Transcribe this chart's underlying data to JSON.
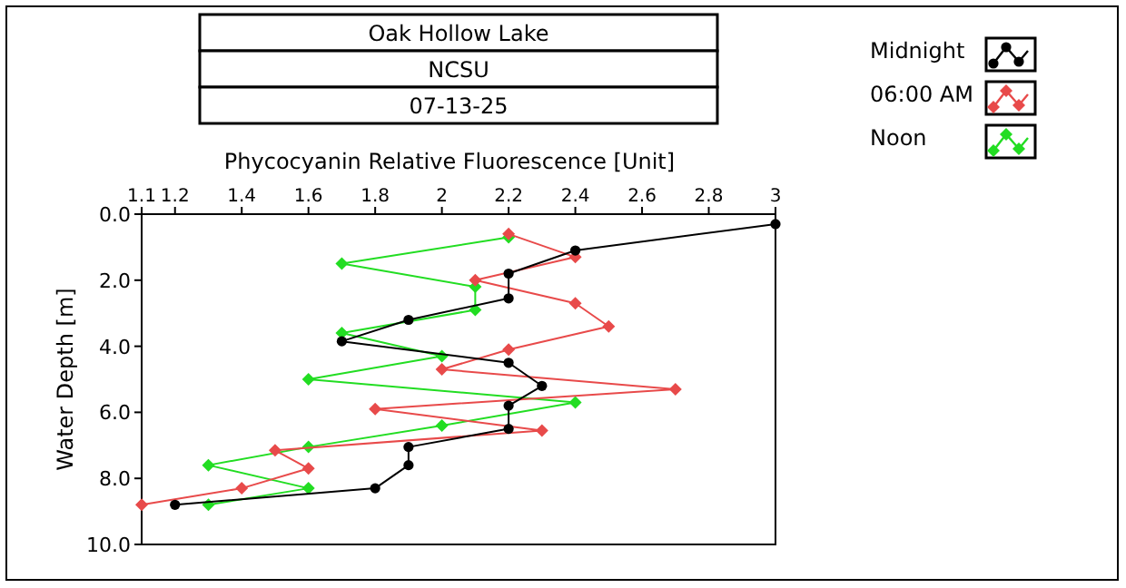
{
  "chart_data": {
    "type": "line",
    "title": "Oak Hollow Lake",
    "subtitle": "NCSU",
    "annotations": [
      "07-13-25"
    ],
    "xlabel": "Phycocyanin Relative Fluorescence [Unit]",
    "ylabel": "Water Depth [m]",
    "xlim": [
      1.1,
      3
    ],
    "xticks": [
      1.1,
      1.2,
      1.4,
      1.6,
      1.8,
      2,
      2.2,
      2.4,
      2.6,
      2.8,
      3
    ],
    "ylim": [
      10,
      0
    ],
    "yticks": [
      {
        "value": 0,
        "label": "0.0"
      },
      {
        "value": 2,
        "label": "2.0"
      },
      {
        "value": 4,
        "label": "4.0"
      },
      {
        "value": 6,
        "label": "6.0"
      },
      {
        "value": 8,
        "label": "8.0"
      },
      {
        "value": 10,
        "label": "10.0"
      }
    ],
    "grid": false,
    "legend": "top right",
    "line_style": "solid",
    "series": [
      {
        "name": "Midnight",
        "color": "#000000",
        "marker": "circle",
        "x": [
          3,
          2.4,
          2.2,
          2.2,
          1.9,
          1.7,
          2.2,
          2.3,
          2.2,
          2.2,
          1.9,
          1.9,
          1.8,
          1.2
        ],
        "values": [
          0.3,
          1.1,
          1.8,
          2.55,
          3.2,
          3.85,
          4.5,
          5.2,
          5.8,
          6.5,
          7.05,
          7.6,
          8.3,
          8.8
        ]
      },
      {
        "name": "06:00 AM",
        "color": "#e84a4a",
        "marker": "diamond",
        "x": [
          2.2,
          2.4,
          2.1,
          2.4,
          2.5,
          2.2,
          2,
          2.7,
          1.8,
          2.3,
          1.5,
          1.6,
          1.4,
          1.1
        ],
        "values": [
          0.6,
          1.3,
          2,
          2.7,
          3.4,
          4.1,
          4.7,
          5.3,
          5.9,
          6.55,
          7.15,
          7.7,
          8.3,
          8.8
        ]
      },
      {
        "name": "Noon",
        "color": "#22dd22",
        "marker": "diamond",
        "x": [
          2.2,
          1.7,
          2.1,
          2.1,
          1.7,
          2,
          1.6,
          2.4,
          2,
          1.6,
          1.3,
          1.6,
          1.3
        ],
        "values": [
          0.7,
          1.5,
          2.2,
          2.9,
          3.6,
          4.3,
          5,
          5.7,
          6.4,
          7.05,
          7.6,
          8.3,
          8.8
        ]
      }
    ]
  }
}
